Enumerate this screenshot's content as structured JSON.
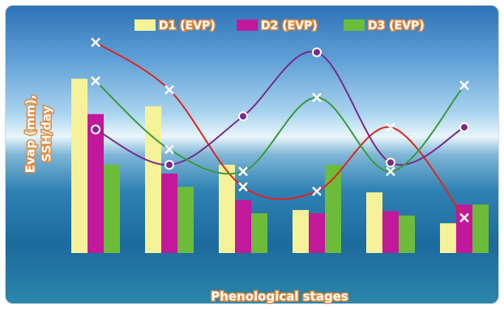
{
  "chart_data": {
    "type": "bar",
    "x_label": "Phenological stages",
    "y_label": [
      "Evap (mm),",
      "SSH/day"
    ],
    "categories": [
      null,
      null,
      null,
      null,
      null,
      null
    ],
    "series": [
      {
        "name": "D1 (EVP)",
        "color": "#f6f29a",
        "values": [
          79,
          66.5,
          40,
          19.5,
          27.5,
          13.5
        ]
      },
      {
        "name": "D2 (EVP)",
        "color": "#c2189c",
        "values": [
          63,
          36,
          24,
          18,
          19,
          22
        ]
      },
      {
        "name": "D3 (EVP)",
        "color": "#6cbc3a",
        "values": [
          40,
          30,
          18,
          40,
          17,
          22
        ]
      }
    ],
    "lines": [
      {
        "color": "#e0241f",
        "marker": "x",
        "values": [
          95.5,
          74,
          30,
          28,
          57,
          16
        ]
      },
      {
        "color": "#7a2a8c",
        "marker": "o",
        "values": [
          56,
          40,
          62,
          91,
          41,
          57
        ]
      },
      {
        "color": "#3a9a3a",
        "marker": "x",
        "values": [
          78,
          47,
          37,
          70.5,
          37,
          76
        ]
      }
    ]
  }
}
